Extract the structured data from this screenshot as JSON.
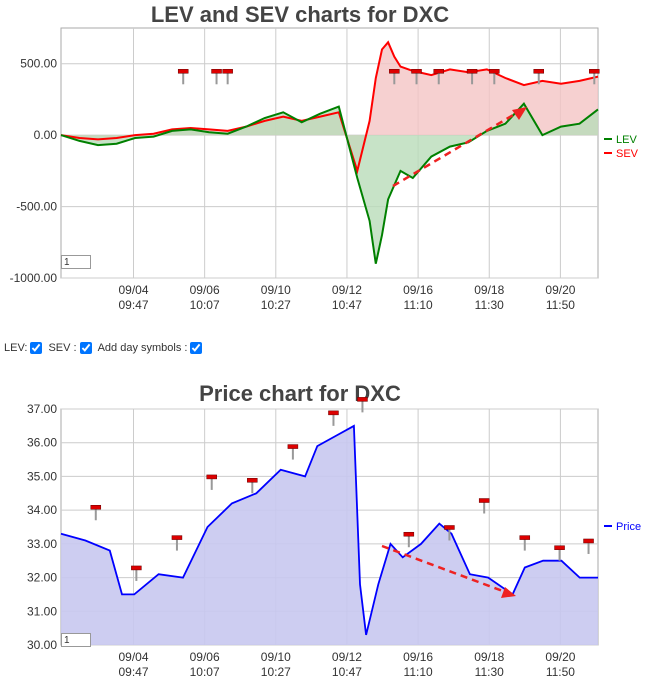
{
  "chart_data": [
    {
      "type": "area",
      "title": "LEV and SEV charts for DXC",
      "ylim": [
        -1000,
        750
      ],
      "yticks": [
        "-1000.00",
        "-500.00",
        "0.00",
        "500.00"
      ],
      "ytick_values": [
        -1000,
        -500,
        0,
        500
      ],
      "xticks": [
        {
          "date": "09/04",
          "time": "09:47"
        },
        {
          "date": "09/06",
          "time": "10:07"
        },
        {
          "date": "09/10",
          "time": "10:27"
        },
        {
          "date": "09/12",
          "time": "10:47"
        },
        {
          "date": "09/16",
          "time": "11:10"
        },
        {
          "date": "09/18",
          "time": "11:30"
        },
        {
          "date": "09/20",
          "time": "11:50"
        }
      ],
      "x": [
        0,
        6,
        12,
        18,
        24,
        30,
        36,
        42,
        48,
        54,
        60,
        66,
        72,
        78,
        84,
        90,
        96,
        100,
        102,
        104,
        106,
        108,
        110,
        114,
        120,
        126,
        132,
        138,
        144,
        150,
        156,
        162,
        168,
        174
      ],
      "series": [
        {
          "name": "LEV",
          "color": "#008000",
          "values": [
            0,
            -40,
            -70,
            -60,
            -20,
            -10,
            30,
            40,
            20,
            10,
            60,
            120,
            160,
            90,
            150,
            200,
            -300,
            -600,
            -900,
            -700,
            -450,
            -350,
            -250,
            -300,
            -150,
            -80,
            -50,
            30,
            80,
            220,
            0,
            60,
            80,
            180
          ]
        },
        {
          "name": "SEV",
          "color": "#ff0000",
          "values": [
            0,
            -20,
            -30,
            -20,
            0,
            10,
            40,
            50,
            40,
            30,
            60,
            100,
            130,
            100,
            130,
            160,
            -250,
            100,
            400,
            600,
            650,
            550,
            480,
            450,
            420,
            460,
            440,
            460,
            400,
            350,
            380,
            360,
            380,
            410
          ]
        }
      ],
      "markers_lev": [
        11,
        14,
        15,
        30,
        32,
        34,
        37,
        39,
        43,
        48
      ],
      "markers_sev": [
        11,
        14,
        15,
        30,
        32,
        34,
        37,
        39,
        43,
        48
      ],
      "legend": [
        "LEV",
        "SEV"
      ],
      "legend_position": "right",
      "page_input": "1"
    },
    {
      "type": "area",
      "title": "Price chart for DXC",
      "ylim": [
        30.0,
        37.0
      ],
      "yticks": [
        "30.00",
        "31.00",
        "32.00",
        "33.00",
        "34.00",
        "35.00",
        "36.00",
        "37.00"
      ],
      "ytick_values": [
        30,
        31,
        32,
        33,
        34,
        35,
        36,
        37
      ],
      "xticks": [
        {
          "date": "09/04",
          "time": "09:47"
        },
        {
          "date": "09/06",
          "time": "10:07"
        },
        {
          "date": "09/10",
          "time": "10:27"
        },
        {
          "date": "09/12",
          "time": "10:47"
        },
        {
          "date": "09/16",
          "time": "11:10"
        },
        {
          "date": "09/18",
          "time": "11:30"
        },
        {
          "date": "09/20",
          "time": "11:50"
        }
      ],
      "x": [
        0,
        8,
        16,
        20,
        24,
        32,
        40,
        48,
        56,
        64,
        72,
        80,
        84,
        90,
        96,
        98,
        100,
        104,
        108,
        112,
        118,
        124,
        128,
        134,
        140,
        148,
        152,
        158,
        164,
        170,
        176
      ],
      "series": [
        {
          "name": "Price",
          "color": "#0000ff",
          "values": [
            33.3,
            33.1,
            32.8,
            31.5,
            31.5,
            32.1,
            32.0,
            33.5,
            34.2,
            34.5,
            35.2,
            35.0,
            35.9,
            36.2,
            36.5,
            31.8,
            30.3,
            31.8,
            33.0,
            32.6,
            33.0,
            33.6,
            33.3,
            32.1,
            32.0,
            31.5,
            32.3,
            32.5,
            32.5,
            32.0,
            32.0
          ]
        }
      ],
      "markers": [
        33.7,
        31.9,
        32.8,
        34.6,
        34.5,
        35.5,
        36.5,
        36.9,
        32.9,
        33.1,
        33.9,
        32.8,
        32.5,
        32.7
      ],
      "legend": [
        "Price"
      ],
      "legend_position": "right",
      "page_input": "1"
    }
  ],
  "controls": {
    "lev_label": "LEV:",
    "sev_label": "SEV :",
    "day_symbols_label": "Add day symbols :"
  },
  "colors": {
    "lev": "#008000",
    "sev": "#ff0000",
    "price": "#0000ff",
    "trend": "#ee2222"
  }
}
